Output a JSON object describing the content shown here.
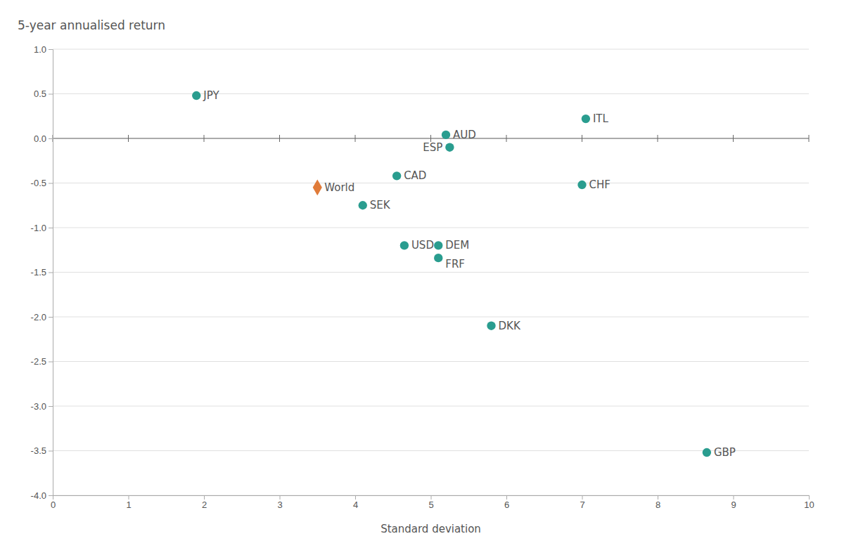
{
  "chart_data": {
    "type": "scatter",
    "title": "5-year annualised return",
    "x_label": "Standard deviation",
    "xlim": [
      0,
      10
    ],
    "ylim": [
      -4.0,
      1.0
    ],
    "xticks": [
      0,
      1,
      2,
      3,
      4,
      5,
      6,
      7,
      8,
      9,
      10
    ],
    "yticks": [
      {
        "value": -4.0,
        "label": "-4.0"
      },
      -3.5,
      {
        "value": -3.0,
        "label": "-3.0"
      },
      -2.5,
      {
        "value": -2.0,
        "label": "-2.0"
      },
      -1.5,
      {
        "value": -1.0,
        "label": "-1.0"
      },
      -0.5,
      {
        "value": 0.0,
        "label": "0.0"
      },
      0.5,
      {
        "value": 1.0,
        "label": "1.0"
      }
    ],
    "grid": "y",
    "series": [
      {
        "categories": [
          "JPY",
          "AUD",
          "ESP",
          "ITL",
          "CAD",
          "SEK",
          "CHF",
          "USD",
          "DEM",
          "FRF",
          "DKK",
          "GBP"
        ],
        "x": [
          1.9,
          5.2,
          5.25,
          7.05,
          4.55,
          4.1,
          7.0,
          4.65,
          5.1,
          5.1,
          5.8,
          8.65
        ],
        "values": [
          0.48,
          0.04,
          -0.1,
          0.22,
          -0.42,
          -0.75,
          -0.52,
          -1.2,
          -1.2,
          -1.34,
          -2.1,
          -3.52
        ],
        "color": "#2a9d8f",
        "marker": "circle"
      },
      {
        "categories": [
          "World"
        ],
        "x": [
          3.5
        ],
        "values": [
          -0.55
        ],
        "color": "#e07b39",
        "marker": "diamond"
      }
    ]
  }
}
